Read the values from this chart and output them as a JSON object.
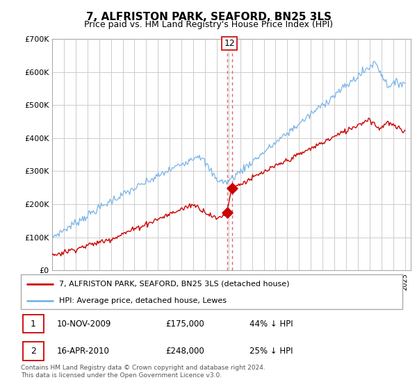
{
  "title": "7, ALFRISTON PARK, SEAFORD, BN25 3LS",
  "subtitle": "Price paid vs. HM Land Registry's House Price Index (HPI)",
  "legend_line1": "7, ALFRISTON PARK, SEAFORD, BN25 3LS (detached house)",
  "legend_line2": "HPI: Average price, detached house, Lewes",
  "sale1_date": "10-NOV-2009",
  "sale1_price": "£175,000",
  "sale1_hpi": "44% ↓ HPI",
  "sale2_date": "16-APR-2010",
  "sale2_price": "£248,000",
  "sale2_hpi": "25% ↓ HPI",
  "footer": "Contains HM Land Registry data © Crown copyright and database right 2024.\nThis data is licensed under the Open Government Licence v3.0.",
  "hpi_color": "#7ab4e8",
  "sale_color": "#cc0000",
  "vline_color": "#e06060",
  "grid_color": "#cccccc",
  "bg_color": "#ffffff",
  "ylim_min": 0,
  "ylim_max": 700000,
  "yticks": [
    0,
    100000,
    200000,
    300000,
    400000,
    500000,
    600000,
    700000
  ],
  "ytick_labels": [
    "£0",
    "£100K",
    "£200K",
    "£300K",
    "£400K",
    "£500K",
    "£600K",
    "£700K"
  ]
}
